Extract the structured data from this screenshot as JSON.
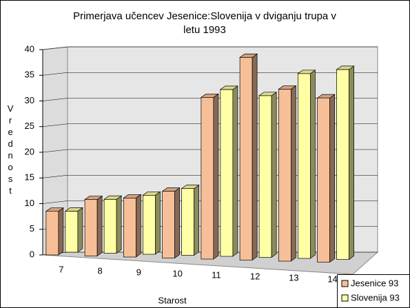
{
  "chart_data": {
    "type": "bar3d",
    "title": "Primerjava učencev Jesenice:Slovenija v dviganju trupa v letu 1993",
    "x_label": "Starost",
    "y_label": "Vrednost",
    "categories": [
      "7",
      "8",
      "9",
      "10",
      "11",
      "12",
      "13",
      "14"
    ],
    "series": [
      {
        "name": "Jesenice 93",
        "color": "#f7bf98",
        "values": [
          8.5,
          11,
          11.5,
          13,
          31.5,
          39.5,
          33.5,
          32
        ]
      },
      {
        "name": "Slovenija 93",
        "color": "#ffffa6",
        "values": [
          8,
          10.5,
          11.5,
          13,
          32.5,
          31.5,
          36,
          37
        ]
      }
    ],
    "ylim": [
      0,
      40
    ],
    "yticks": [
      0,
      5,
      10,
      15,
      20,
      25,
      30,
      35,
      40
    ],
    "grid": true
  }
}
